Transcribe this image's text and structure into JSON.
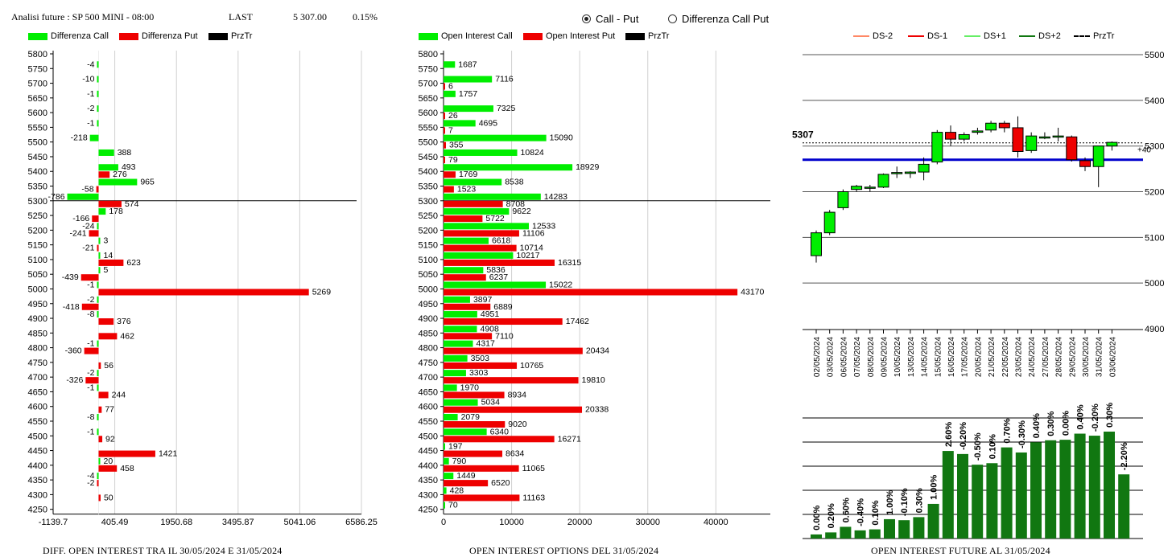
{
  "header": {
    "title": "Analisi future : SP 500 MINI - 08:00",
    "last_label": "LAST",
    "last_value": "5 307.00",
    "change": "0.15%"
  },
  "radio": {
    "option1": "Call - Put",
    "option2": "Differenza Call Put",
    "selected": "Call - Put"
  },
  "colors": {
    "green": "#00ee00",
    "red": "#ee0000",
    "black": "#000000",
    "blue": "#0000cc",
    "darkgreen": "#117711"
  },
  "captions": {
    "left": "DIFF. OPEN INTEREST TRA IL 30/05/2024 E 31/05/2024",
    "mid": "OPEN INTEREST OPTIONS DEL 31/05/2024",
    "right": "OPEN INTEREST FUTURE AL 31/05/2024"
  },
  "chart_data": [
    {
      "type": "bar",
      "orientation": "horizontal",
      "legend": [
        "Differenza Call",
        "Differenza Put",
        "PrzTr"
      ],
      "categories": [
        "5800",
        "5750",
        "5700",
        "5650",
        "5600",
        "5550",
        "5500",
        "5450",
        "5400",
        "5350",
        "5300",
        "5250",
        "5200",
        "5150",
        "5100",
        "5050",
        "5000",
        "4950",
        "4900",
        "4850",
        "4800",
        "4750",
        "4700",
        "4650",
        "4600",
        "4550",
        "4500",
        "4450",
        "4400",
        "4350",
        "4300",
        "4250"
      ],
      "series": [
        {
          "name": "Differenza Call",
          "values": [
            null,
            -4,
            -10,
            -1,
            -2,
            -1,
            -218,
            388,
            493,
            965,
            -786,
            178,
            -24,
            3,
            14,
            5,
            -1,
            -2,
            -8,
            null,
            -1,
            null,
            -2,
            -1,
            null,
            -8,
            -1,
            null,
            20,
            -4,
            null,
            null
          ]
        },
        {
          "name": "Differenza Put",
          "values": [
            null,
            null,
            null,
            null,
            null,
            null,
            null,
            null,
            276,
            -58,
            574,
            -166,
            -241,
            -21,
            623,
            -439,
            5269,
            -418,
            376,
            462,
            -360,
            56,
            -326,
            244,
            77,
            null,
            92,
            1421,
            458,
            -2,
            50,
            null
          ]
        }
      ],
      "xticks": [
        "-1139.7",
        "405.49",
        "1950.68",
        "3495.87",
        "5041.06",
        "6586.25"
      ],
      "xlim": [
        -1139.7,
        6586.25
      ],
      "prztr_level": "5300"
    },
    {
      "type": "bar",
      "orientation": "horizontal",
      "legend": [
        "Open Interest Call",
        "Open Interest Put",
        "PrzTr"
      ],
      "categories": [
        "5800",
        "5750",
        "5700",
        "5650",
        "5600",
        "5550",
        "5500",
        "5450",
        "5400",
        "5350",
        "5300",
        "5250",
        "5200",
        "5150",
        "5100",
        "5050",
        "5000",
        "4950",
        "4900",
        "4850",
        "4800",
        "4750",
        "4700",
        "4650",
        "4600",
        "4550",
        "4500",
        "4450",
        "4400",
        "4350",
        "4300",
        "4250"
      ],
      "series": [
        {
          "name": "Open Interest Call",
          "values": [
            null,
            1687,
            7116,
            1757,
            7325,
            4695,
            15090,
            10824,
            18929,
            8538,
            14283,
            9622,
            12533,
            6618,
            10217,
            5836,
            15022,
            3897,
            4951,
            4908,
            4317,
            3503,
            3303,
            1970,
            5034,
            2079,
            6340,
            197,
            790,
            1449,
            428,
            70
          ]
        },
        {
          "name": "Open Interest Put",
          "values": [
            null,
            null,
            6,
            null,
            26,
            7,
            355,
            79,
            1769,
            1523,
            8708,
            5722,
            11106,
            10714,
            16315,
            6237,
            43170,
            6889,
            17462,
            7110,
            20434,
            10765,
            19810,
            8934,
            20338,
            9020,
            16271,
            8634,
            11065,
            6520,
            11163,
            null
          ]
        }
      ],
      "xticks": [
        "0",
        "10000",
        "20000",
        "30000",
        "40000"
      ],
      "xlim": [
        0,
        48000
      ],
      "prztr_level": "5300"
    },
    {
      "type": "candlestick",
      "legend": [
        "DS-2",
        "DS-1",
        "DS+1",
        "DS+2",
        "PrzTr"
      ],
      "x": [
        "02/05/2024",
        "03/05/2024",
        "06/05/2024",
        "07/05/2024",
        "08/05/2024",
        "09/05/2024",
        "10/05/2024",
        "13/05/2024",
        "14/05/2024",
        "15/05/2024",
        "16/05/2024",
        "17/05/2024",
        "20/05/2024",
        "21/05/2024",
        "22/05/2024",
        "23/05/2024",
        "24/05/2024",
        "27/05/2024",
        "28/05/2024",
        "29/05/2024",
        "30/05/2024",
        "31/05/2024",
        "03/06/2024"
      ],
      "ohlc": [
        [
          5060,
          5115,
          5045,
          5110
        ],
        [
          5110,
          5160,
          5105,
          5155
        ],
        [
          5165,
          5205,
          5160,
          5200
        ],
        [
          5205,
          5215,
          5200,
          5212
        ],
        [
          5210,
          5215,
          5200,
          5210
        ],
        [
          5210,
          5240,
          5208,
          5238
        ],
        [
          5240,
          5255,
          5230,
          5242
        ],
        [
          5240,
          5245,
          5230,
          5243
        ],
        [
          5243,
          5275,
          5225,
          5260
        ],
        [
          5265,
          5335,
          5260,
          5330
        ],
        [
          5330,
          5345,
          5300,
          5315
        ],
        [
          5315,
          5330,
          5310,
          5325
        ],
        [
          5330,
          5340,
          5325,
          5333
        ],
        [
          5335,
          5355,
          5330,
          5350
        ],
        [
          5350,
          5355,
          5330,
          5340
        ],
        [
          5340,
          5365,
          5275,
          5288
        ],
        [
          5290,
          5330,
          5285,
          5322
        ],
        [
          5320,
          5330,
          5315,
          5320
        ],
        [
          5322,
          5340,
          5310,
          5322
        ],
        [
          5320,
          5323,
          5266,
          5270
        ],
        [
          5268,
          5275,
          5245,
          5255
        ],
        [
          5255,
          5300,
          5210,
          5300
        ],
        [
          5300,
          5310,
          5290,
          5308
        ]
      ],
      "yticks": [
        "5500",
        "5400",
        "5300",
        "5200",
        "5100",
        "5000",
        "4900"
      ],
      "ylim": [
        4900,
        5500
      ],
      "price_label": "5307",
      "delta_label": "+40",
      "prztr_level": 5307,
      "blue_level": 5270
    },
    {
      "type": "bar",
      "categories": [
        "02/05/2024",
        "03/05/2024",
        "06/05/2024",
        "07/05/2024",
        "08/05/2024",
        "09/05/2024",
        "10/05/2024",
        "13/05/2024",
        "14/05/2024",
        "15/05/2024",
        "16/05/2024",
        "17/05/2024",
        "20/05/2024",
        "21/05/2024",
        "22/05/2024",
        "23/05/2024",
        "24/05/2024",
        "27/05/2024",
        "28/05/2024",
        "29/05/2024",
        "30/05/2024",
        "31/05/2024"
      ],
      "values": [
        0.8,
        1.2,
        2.3,
        1.6,
        1.8,
        3.8,
        3.6,
        4.2,
        6.8,
        17.2,
        16.6,
        14.5,
        14.8,
        17.9,
        16.9,
        18.9,
        19.3,
        19.4,
        20.6,
        20.2,
        21.0,
        12.6
      ],
      "labels": [
        "0.00%",
        "0.20%",
        "0.60%",
        "-0.40%",
        "0.10%",
        "1.00%",
        "-0.10%",
        "0.30%",
        "1.00%",
        "2.60%",
        "-0.20%",
        "-0.50%",
        "0.10%",
        "0.70%",
        "-0.30%",
        "0.40%",
        "0.30%",
        "0.00%",
        "0.40%",
        "-0.20%",
        "0.30%",
        "-2.20%"
      ]
    }
  ]
}
